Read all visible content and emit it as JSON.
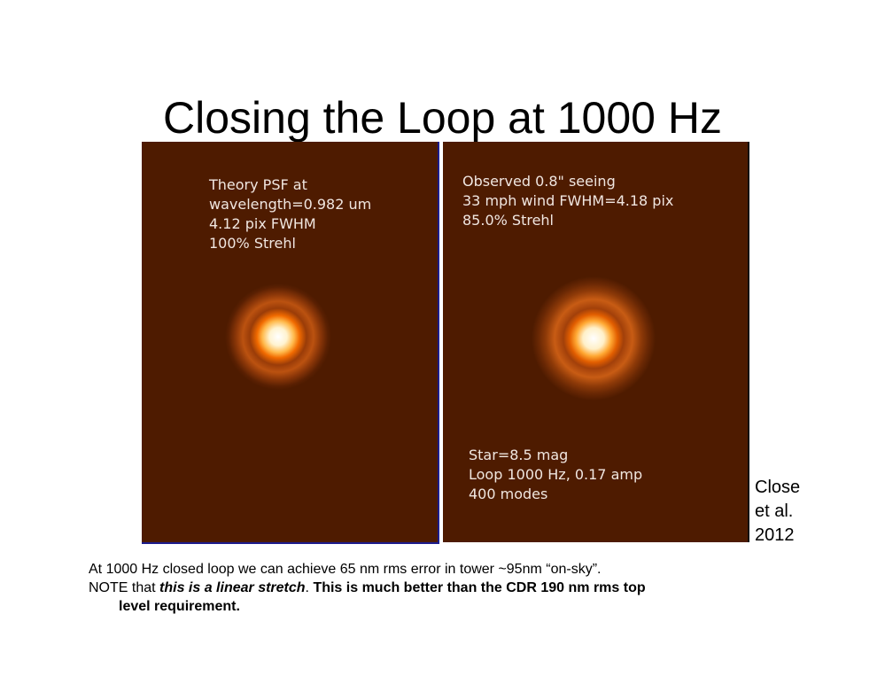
{
  "slide": {
    "title": "Closing the Loop at 1000 Hz",
    "left_panel": {
      "text": "Theory PSF at\nwavelength=0.982 um\n4.12 pix FWHM\n100% Strehl"
    },
    "right_panel": {
      "text_top": "Observed 0.8\" seeing\n33 mph wind FWHM=4.18 pix\n85.0% Strehl",
      "text_bottom": "Star=8.5 mag\nLoop 1000 Hz, 0.17 amp\n400 modes"
    },
    "citation": "Close\net al.\n2012",
    "caption": {
      "line1": "At 1000 Hz closed loop we can achieve 65 nm rms error in tower ~95nm “on-sky”.",
      "line2_prefix": "NOTE that ",
      "line2_emph": "this is a linear stretch",
      "line2_period": ". ",
      "line2_bold": "This is much better than the CDR 190 nm rms top",
      "line3_bold": "level requirement."
    }
  }
}
